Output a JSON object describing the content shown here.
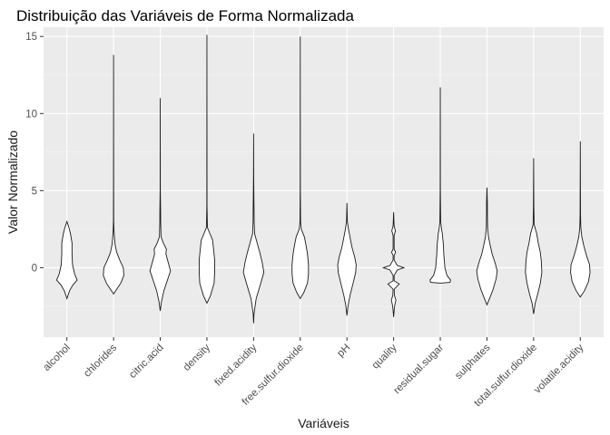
{
  "chart_data": {
    "type": "violin",
    "title": "Distribuição das Variáveis de Forma Normalizada",
    "xlabel": "Variáveis",
    "ylabel": "Valor Normalizado",
    "ylim": [
      -4.5,
      15.6
    ],
    "yticks": [
      0,
      5,
      10,
      15
    ],
    "grid": true,
    "legend": "none",
    "colors": {
      "panel": "#ebebeb",
      "grid": "#ffffff",
      "violin_fill": "#ffffff",
      "violin_stroke": "#1a1a1a"
    },
    "categories": [
      "alcohol",
      "chlorides",
      "citric.acid",
      "density",
      "fixed.acidity",
      "free.sulfur.dioxide",
      "pH",
      "quality",
      "residual.sugar",
      "sulphates",
      "total.sulfur.dioxide",
      "volatile.acidity"
    ],
    "violins": [
      {
        "category": "alcohol",
        "min": -2.0,
        "max": 3.0,
        "profile": [
          [
            -2.0,
            0.0
          ],
          [
            -1.5,
            0.25
          ],
          [
            -1.1,
            0.6
          ],
          [
            -0.8,
            1.0
          ],
          [
            -0.4,
            0.75
          ],
          [
            0.2,
            0.55
          ],
          [
            0.9,
            0.5
          ],
          [
            1.6,
            0.5
          ],
          [
            2.2,
            0.35
          ],
          [
            2.6,
            0.2
          ],
          [
            3.0,
            0.0
          ]
        ]
      },
      {
        "category": "chlorides",
        "min": -1.7,
        "max": 13.8,
        "profile": [
          [
            -1.7,
            0.0
          ],
          [
            -1.4,
            0.3
          ],
          [
            -1.0,
            0.7
          ],
          [
            -0.5,
            1.0
          ],
          [
            0.0,
            0.95
          ],
          [
            0.5,
            0.6
          ],
          [
            1.0,
            0.3
          ],
          [
            1.5,
            0.15
          ],
          [
            2.0,
            0.08
          ],
          [
            2.4,
            0.04
          ],
          [
            3.0,
            0.015
          ],
          [
            5.0,
            0.008
          ],
          [
            13.8,
            0.0
          ]
        ]
      },
      {
        "category": "citric.acid",
        "min": -2.8,
        "max": 11.0,
        "profile": [
          [
            -2.8,
            0.0
          ],
          [
            -2.2,
            0.12
          ],
          [
            -1.5,
            0.35
          ],
          [
            -0.7,
            0.75
          ],
          [
            -0.2,
            1.0
          ],
          [
            0.4,
            0.75
          ],
          [
            0.9,
            0.55
          ],
          [
            1.2,
            0.6
          ],
          [
            1.6,
            0.3
          ],
          [
            2.0,
            0.08
          ],
          [
            3.0,
            0.04
          ],
          [
            3.5,
            0.04
          ],
          [
            5.0,
            0.01
          ],
          [
            11.0,
            0.0
          ]
        ]
      },
      {
        "category": "density",
        "min": -2.3,
        "max": 15.1,
        "profile": [
          [
            -2.3,
            0.0
          ],
          [
            -1.8,
            0.35
          ],
          [
            -1.0,
            0.7
          ],
          [
            -0.3,
            0.75
          ],
          [
            0.5,
            0.75
          ],
          [
            1.2,
            0.65
          ],
          [
            1.8,
            0.55
          ],
          [
            2.2,
            0.3
          ],
          [
            2.6,
            0.05
          ],
          [
            4.0,
            0.01
          ],
          [
            15.1,
            0.0
          ]
        ]
      },
      {
        "category": "fixed.acidity",
        "min": -3.6,
        "max": 8.7,
        "profile": [
          [
            -3.6,
            0.0
          ],
          [
            -3.0,
            0.04
          ],
          [
            -2.0,
            0.25
          ],
          [
            -1.0,
            0.7
          ],
          [
            -0.3,
            1.0
          ],
          [
            0.3,
            0.85
          ],
          [
            1.0,
            0.6
          ],
          [
            1.6,
            0.35
          ],
          [
            2.2,
            0.1
          ],
          [
            3.0,
            0.05
          ],
          [
            4.0,
            0.04
          ],
          [
            4.5,
            0.03
          ],
          [
            6.0,
            0.01
          ],
          [
            8.7,
            0.0
          ]
        ]
      },
      {
        "category": "free.sulfur.dioxide",
        "min": -2.0,
        "max": 15.0,
        "profile": [
          [
            -2.0,
            0.0
          ],
          [
            -1.6,
            0.35
          ],
          [
            -1.0,
            0.7
          ],
          [
            -0.4,
            0.8
          ],
          [
            0.2,
            0.8
          ],
          [
            0.9,
            0.7
          ],
          [
            1.5,
            0.55
          ],
          [
            2.0,
            0.4
          ],
          [
            2.5,
            0.1
          ],
          [
            3.0,
            0.03
          ],
          [
            5.0,
            0.01
          ],
          [
            15.0,
            0.0
          ]
        ]
      },
      {
        "category": "pH",
        "min": -3.1,
        "max": 4.2,
        "profile": [
          [
            -3.1,
            0.0
          ],
          [
            -2.5,
            0.1
          ],
          [
            -1.8,
            0.3
          ],
          [
            -1.0,
            0.6
          ],
          [
            -0.3,
            0.85
          ],
          [
            0.2,
            0.9
          ],
          [
            0.7,
            0.75
          ],
          [
            1.3,
            0.5
          ],
          [
            1.8,
            0.35
          ],
          [
            2.5,
            0.15
          ],
          [
            3.0,
            0.04
          ],
          [
            4.2,
            0.0
          ]
        ]
      },
      {
        "category": "quality",
        "min": -3.2,
        "max": 3.6,
        "profile": [
          [
            -3.2,
            0.0
          ],
          [
            -2.7,
            0.06
          ],
          [
            -2.4,
            0.12
          ],
          [
            -2.1,
            0.22
          ],
          [
            -1.8,
            0.08
          ],
          [
            -1.4,
            0.05
          ],
          [
            -1.05,
            0.55
          ],
          [
            -0.85,
            0.05
          ],
          [
            -0.5,
            0.05
          ],
          [
            -0.15,
            0.35
          ],
          [
            0.0,
            1.0
          ],
          [
            0.15,
            0.35
          ],
          [
            0.5,
            0.05
          ],
          [
            0.8,
            0.05
          ],
          [
            1.0,
            0.2
          ],
          [
            1.2,
            0.05
          ],
          [
            2.1,
            0.05
          ],
          [
            2.4,
            0.18
          ],
          [
            2.7,
            0.05
          ],
          [
            3.6,
            0.0
          ]
        ]
      },
      {
        "category": "residual.sugar",
        "min": -1.0,
        "max": 11.7,
        "profile": [
          [
            -1.0,
            0.0
          ],
          [
            -0.95,
            0.95
          ],
          [
            -0.8,
            1.0
          ],
          [
            -0.5,
            0.65
          ],
          [
            0.0,
            0.45
          ],
          [
            0.8,
            0.35
          ],
          [
            1.5,
            0.3
          ],
          [
            2.2,
            0.2
          ],
          [
            2.6,
            0.1
          ],
          [
            3.0,
            0.04
          ],
          [
            5.0,
            0.01
          ],
          [
            11.7,
            0.0
          ]
        ]
      },
      {
        "category": "sulphates",
        "min": -2.4,
        "max": 5.2,
        "profile": [
          [
            -2.4,
            0.0
          ],
          [
            -2.0,
            0.25
          ],
          [
            -1.4,
            0.6
          ],
          [
            -0.7,
            0.9
          ],
          [
            -0.2,
            1.0
          ],
          [
            0.3,
            0.8
          ],
          [
            0.9,
            0.5
          ],
          [
            1.5,
            0.3
          ],
          [
            2.0,
            0.15
          ],
          [
            2.6,
            0.06
          ],
          [
            3.6,
            0.04
          ],
          [
            4.2,
            0.04
          ],
          [
            5.2,
            0.0
          ]
        ]
      },
      {
        "category": "total.sulfur.dioxide",
        "min": -3.0,
        "max": 7.1,
        "profile": [
          [
            -3.0,
            0.0
          ],
          [
            -2.3,
            0.15
          ],
          [
            -1.7,
            0.4
          ],
          [
            -1.0,
            0.65
          ],
          [
            -0.3,
            0.8
          ],
          [
            0.4,
            0.75
          ],
          [
            1.0,
            0.65
          ],
          [
            1.6,
            0.45
          ],
          [
            2.2,
            0.3
          ],
          [
            2.8,
            0.05
          ],
          [
            4.0,
            0.02
          ],
          [
            7.1,
            0.0
          ]
        ]
      },
      {
        "category": "volatile.acidity",
        "min": -1.9,
        "max": 8.2,
        "profile": [
          [
            -1.9,
            0.0
          ],
          [
            -1.5,
            0.4
          ],
          [
            -0.9,
            0.8
          ],
          [
            -0.3,
            0.95
          ],
          [
            0.2,
            0.9
          ],
          [
            0.8,
            0.6
          ],
          [
            1.4,
            0.35
          ],
          [
            2.0,
            0.15
          ],
          [
            2.6,
            0.05
          ],
          [
            3.5,
            0.02
          ],
          [
            8.2,
            0.0
          ]
        ]
      }
    ]
  }
}
